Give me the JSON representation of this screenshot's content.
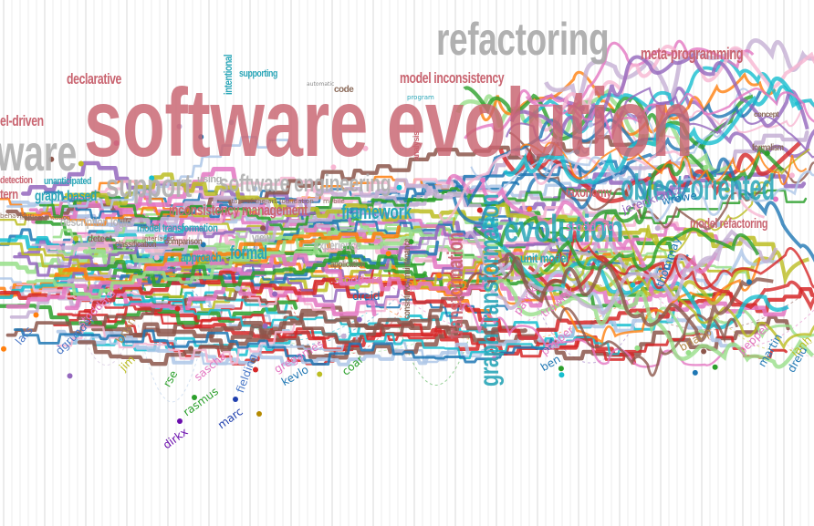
{
  "palette": [
    "#e377c2",
    "#2ca02c",
    "#98df8a",
    "#1f77b4",
    "#aec7e8",
    "#ff7f0e",
    "#9467bd",
    "#17becf",
    "#d62728",
    "#bcbd22",
    "#8c564b",
    "#c5b0d5",
    "#f7b6d2"
  ],
  "words": [
    {
      "text": "software evolution",
      "color": "#c96470"
    },
    {
      "text": "refactoring",
      "color": "#a9a9a9"
    },
    {
      "text": "meta-programming",
      "color": "#c96470"
    },
    {
      "text": "declarative",
      "color": "#c96470"
    },
    {
      "text": "model inconsistency",
      "color": "#c96470"
    },
    {
      "text": "intentional",
      "color": "#2aa6b8"
    },
    {
      "text": "supporting",
      "color": "#2aa6b8"
    },
    {
      "text": "automatic",
      "color": "#8a8a8a"
    },
    {
      "text": "code",
      "color": "#8b6b5a"
    },
    {
      "text": "program",
      "color": "#2aa6b8"
    },
    {
      "text": "el-driven",
      "color": "#c96470"
    },
    {
      "text": "ware",
      "color": "#b0b0b0"
    },
    {
      "text": "support",
      "color": "#b0b0b0"
    },
    {
      "text": "software engineering",
      "color": "#b0b0b0"
    },
    {
      "text": "inconsistency management",
      "color": "#c96470"
    },
    {
      "text": "detection",
      "color": "#c96470"
    },
    {
      "text": "unanticipated",
      "color": "#2aa6b8"
    },
    {
      "text": "tern",
      "color": "#c96470"
    },
    {
      "text": "graph-based",
      "color": "#2aa6b8"
    },
    {
      "text": "description logic",
      "color": "#b0b0b0"
    },
    {
      "text": "model transformation",
      "color": "#2aa6b8"
    },
    {
      "text": "detect",
      "color": "#8b6b5a"
    },
    {
      "text": "classification",
      "color": "#8b6b5a"
    },
    {
      "text": "comparison",
      "color": "#8b6b5a"
    },
    {
      "text": "approach",
      "color": "#2aa6b8"
    },
    {
      "text": "formal",
      "color": "#2aa6b8"
    },
    {
      "text": "view",
      "color": "#b0b0b0"
    },
    {
      "text": "framework",
      "color": "#2aa6b8"
    },
    {
      "text": "application",
      "color": "#8b6b5a"
    },
    {
      "text": "state-of-the-art",
      "color": "#8b6b5a"
    },
    {
      "text": "foundation",
      "color": "#8b6b5a"
    },
    {
      "text": "mobile",
      "color": "#8b6b5a"
    },
    {
      "text": "evolution",
      "color": "#2aa6b8"
    },
    {
      "text": "unit model",
      "color": "#2aa6b8"
    },
    {
      "text": "taxonomy",
      "color": "#c96470"
    },
    {
      "text": "model refactoring",
      "color": "#c96470"
    },
    {
      "text": "formalism",
      "color": "#8b6b5a"
    },
    {
      "text": "concept",
      "color": "#8b6b5a"
    },
    {
      "text": "object-oriented",
      "color": "#2aa6b8"
    },
    {
      "text": "graph transformation",
      "color": "#2aa6b8"
    },
    {
      "text": "transformation",
      "color": "#c96470"
    },
    {
      "text": "consistency maintenance",
      "color": "#8b6b5a"
    },
    {
      "text": "using",
      "color": "#b0b0b0"
    },
    {
      "text": "analysis",
      "color": "#c96470"
    },
    {
      "text": "implementation",
      "color": "#8b6b5a"
    },
    {
      "text": "behaviour",
      "color": "#8b6b5a"
    },
    {
      "text": "interlaced",
      "color": "#8b6b5a"
    },
    {
      "text": "experience",
      "color": "#b0b0b0"
    }
  ],
  "authors": [
    {
      "name": "dirkx",
      "color": "#6a0dad"
    },
    {
      "name": "rasmus",
      "color": "#2ca02c"
    },
    {
      "name": "marc",
      "color": "#1f3fae"
    },
    {
      "name": "lars",
      "color": "#4a78c8"
    },
    {
      "name": "dgrunder",
      "color": "#4a78c8"
    },
    {
      "name": "stoddard",
      "color": "#e377c2"
    },
    {
      "name": "brian",
      "color": "#b58a4a"
    },
    {
      "name": "jim",
      "color": "#bcbd22"
    },
    {
      "name": "sascha",
      "color": "#e377c2"
    },
    {
      "name": "rse",
      "color": "#2ca02c"
    },
    {
      "name": "fielding",
      "color": "#4a78c8"
    },
    {
      "name": "gregames",
      "color": "#e377c2"
    },
    {
      "name": "kevlo",
      "color": "#1f77b4"
    },
    {
      "name": "coar",
      "color": "#2ca02c"
    },
    {
      "name": "jerenkrantz",
      "color": "#9467bd"
    },
    {
      "name": "trawick",
      "color": "#e377c2"
    },
    {
      "name": "thommay",
      "color": "#1f77b4"
    },
    {
      "name": "patrik",
      "color": "#e377c2"
    },
    {
      "name": "pepper",
      "color": "#e377c2"
    },
    {
      "name": "ben",
      "color": "#1f77b4"
    },
    {
      "name": "brianp",
      "color": "#b58a4a"
    },
    {
      "name": "martin",
      "color": "#1f77b4"
    },
    {
      "name": "dreid",
      "color": "#1f77b4"
    },
    {
      "name": "ianh",
      "color": "#bcbd22"
    },
    {
      "name": "stas",
      "color": "#e377c2"
    },
    {
      "name": "dougm",
      "color": "#9467bd"
    },
    {
      "name": "wrowe",
      "color": "#1f77b4"
    }
  ]
}
